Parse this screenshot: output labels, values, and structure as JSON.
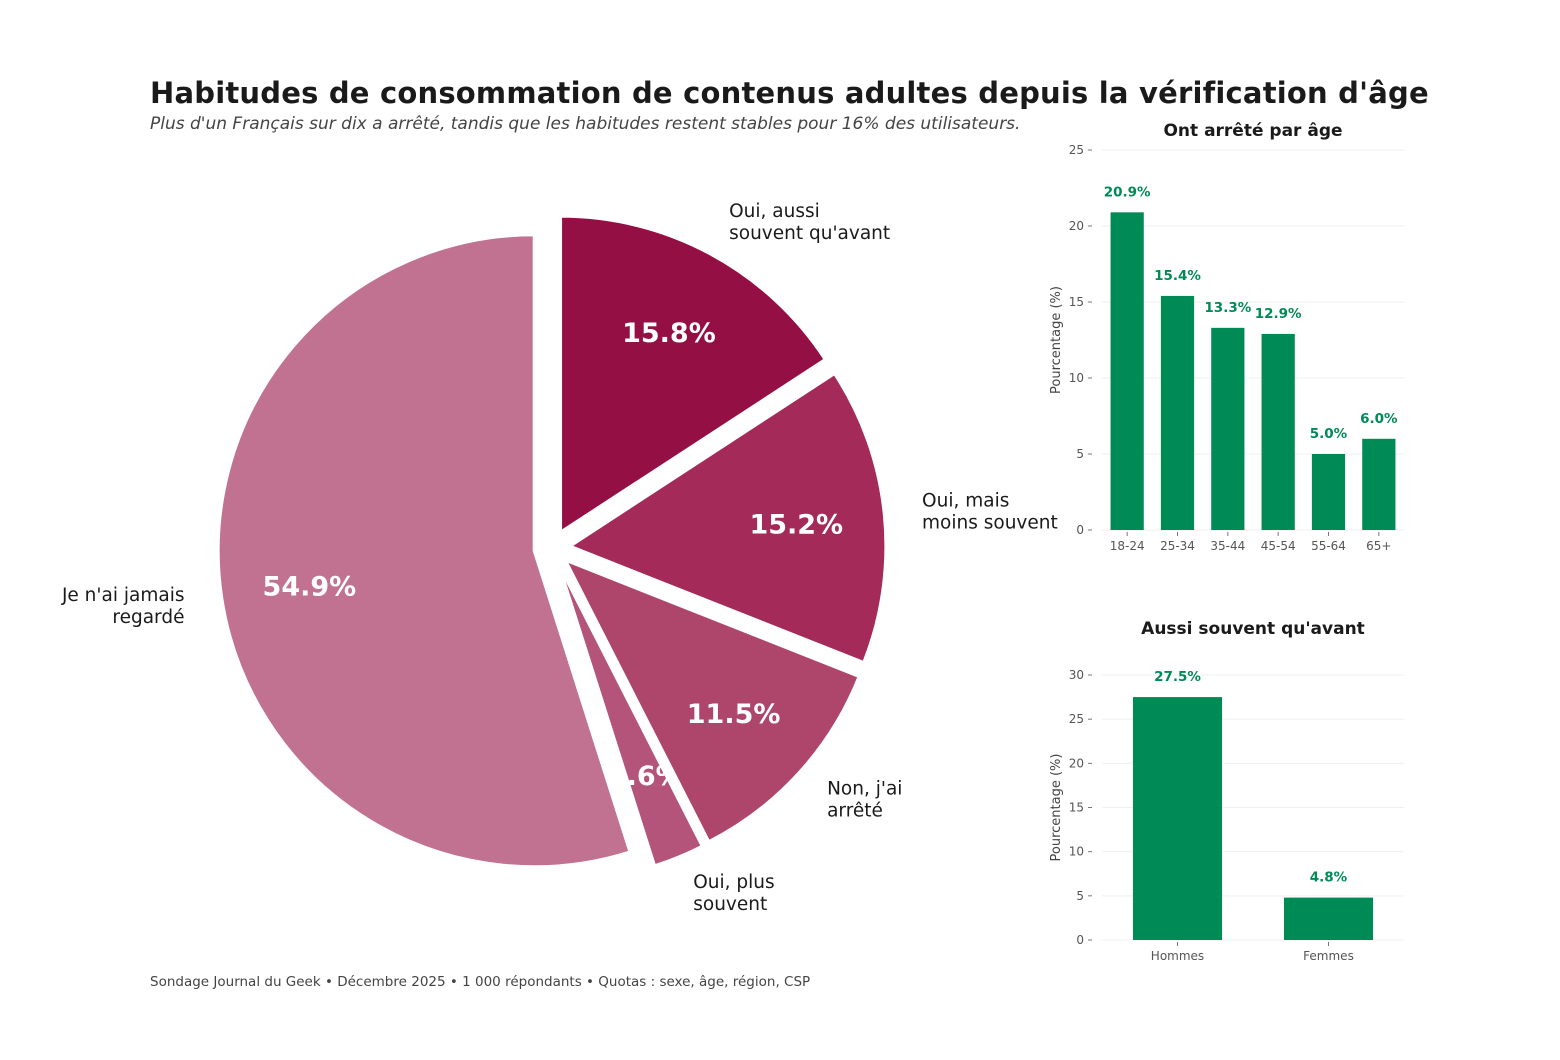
{
  "header": {
    "title": "Habitudes de consommation de contenus adultes depuis la vérification d'âge",
    "subtitle": "Plus d'un Français sur dix a arrêté, tandis que les habitudes restent stables pour 16% des utilisateurs."
  },
  "footer": {
    "source": "Sondage Journal du Geek • Décembre 2025 • 1 000 répondants • Quotas : sexe, âge, région, CSP"
  },
  "chart_data": [
    {
      "type": "pie",
      "slices": [
        {
          "label_lines": [
            "Je n'ai jamais",
            "regardé"
          ],
          "value": 54.9,
          "value_label": "54.9%",
          "color": "#c17290"
        },
        {
          "label_lines": [
            "Oui, plus",
            "souvent"
          ],
          "value": 2.6,
          "value_label": "2.6%",
          "color": "#b4547a"
        },
        {
          "label_lines": [
            "Non, j'ai",
            "arrêté"
          ],
          "value": 11.5,
          "value_label": "11.5%",
          "color": "#ae456b"
        },
        {
          "label_lines": [
            "Oui, mais",
            "moins souvent"
          ],
          "value": 15.2,
          "value_label": "15.2%",
          "color": "#a32a59"
        },
        {
          "label_lines": [
            "Oui, aussi",
            "souvent qu'avant"
          ],
          "value": 15.8,
          "value_label": "15.8%",
          "color": "#940f44"
        }
      ]
    },
    {
      "type": "bar",
      "title": "Ont arrêté par âge",
      "ylabel": "Pourcentage (%)",
      "categories": [
        "18-24",
        "25-34",
        "35-44",
        "45-54",
        "55-64",
        "65+"
      ],
      "values": [
        20.9,
        15.4,
        13.3,
        12.9,
        5.0,
        6.0
      ],
      "value_labels": [
        "20.9%",
        "15.4%",
        "13.3%",
        "12.9%",
        "5.0%",
        "6.0%"
      ],
      "ylim": [
        0,
        25
      ],
      "yticks": [
        0,
        5,
        10,
        15,
        20,
        25
      ],
      "grid": true,
      "color": "#008a55"
    },
    {
      "type": "bar",
      "title": "Aussi souvent qu'avant",
      "ylabel": "Pourcentage (%)",
      "categories": [
        "Hommes",
        "Femmes"
      ],
      "values": [
        27.5,
        4.8
      ],
      "value_labels": [
        "27.5%",
        "4.8%"
      ],
      "ylim": [
        0,
        30
      ],
      "yticks": [
        0,
        5,
        10,
        15,
        20,
        25,
        30
      ],
      "grid": true,
      "color": "#008a55"
    }
  ]
}
